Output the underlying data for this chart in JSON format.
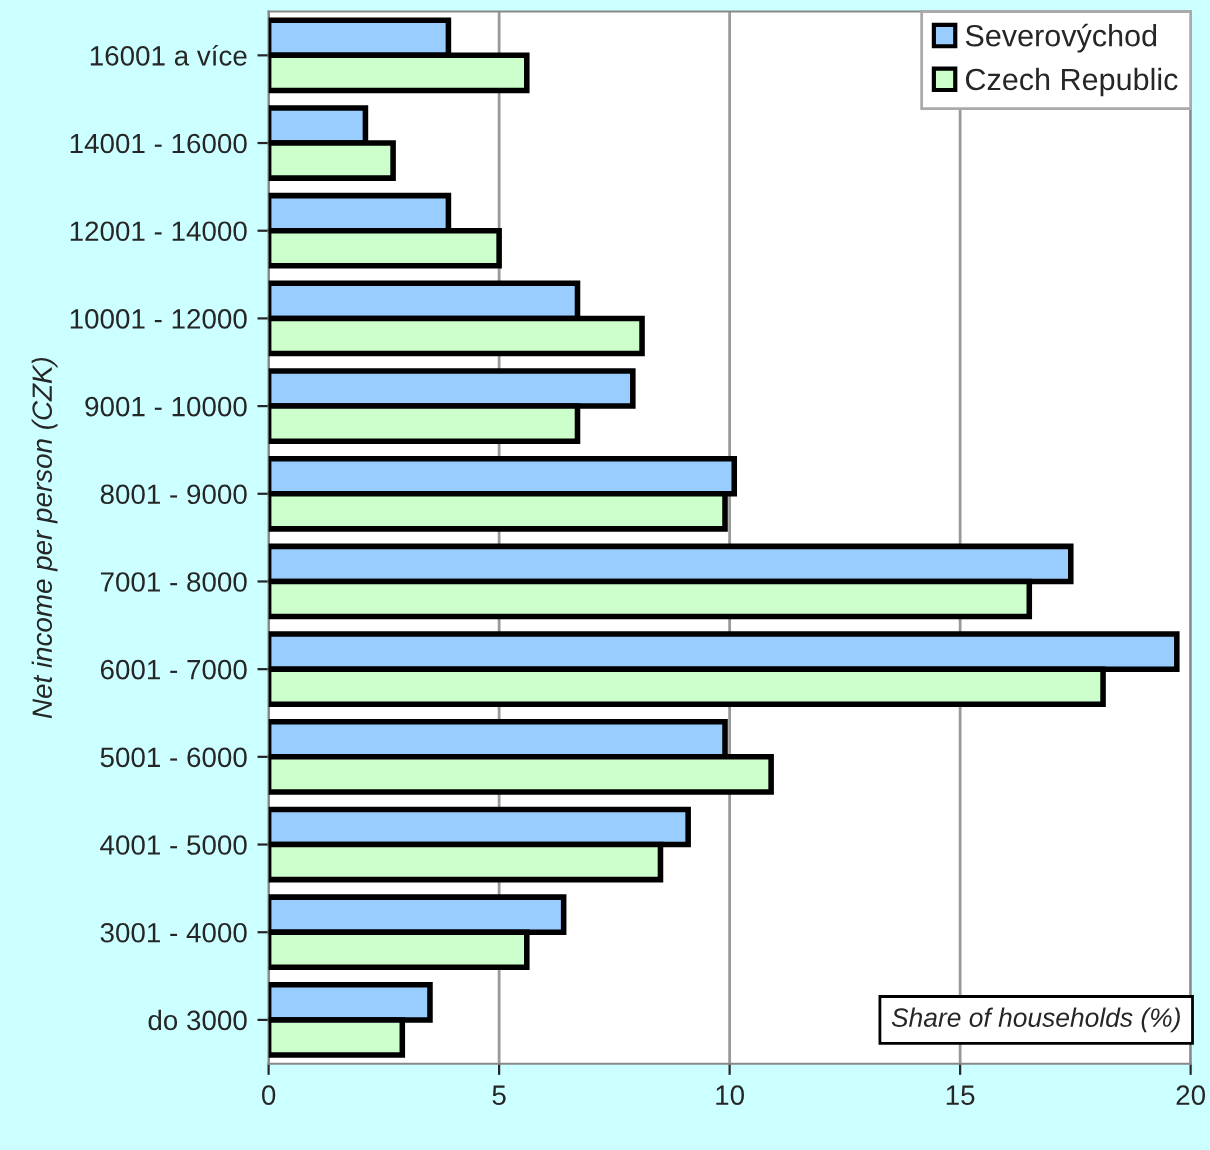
{
  "chart_data": {
    "type": "bar",
    "orientation": "horizontal",
    "ylabel": "Net income per person (CZK)",
    "annotations": [
      "Share of households (%)"
    ],
    "categories": [
      "16001 a více",
      "14001 - 16000",
      "12001 - 14000",
      "10001 - 12000",
      "9001 - 10000",
      "8001 - 9000",
      "7001 - 8000",
      "6001 - 7000",
      "5001 - 6000",
      "4001 - 5000",
      "3001 - 4000",
      "do 3000"
    ],
    "series": [
      {
        "name": "Severovýchod",
        "color": "#99ccff",
        "values": [
          3.9,
          2.1,
          3.9,
          6.7,
          7.9,
          10.1,
          17.4,
          19.7,
          9.9,
          9.1,
          6.4,
          3.5
        ]
      },
      {
        "name": "Czech Republic",
        "color": "#ccffcc",
        "values": [
          5.6,
          2.7,
          5.0,
          8.1,
          6.7,
          9.9,
          16.5,
          18.1,
          10.9,
          8.5,
          5.6,
          2.9
        ]
      }
    ],
    "xlim": [
      0,
      20
    ],
    "xticks": [
      0,
      5,
      10,
      15,
      20
    ],
    "grid": "x",
    "legend": "top right"
  }
}
